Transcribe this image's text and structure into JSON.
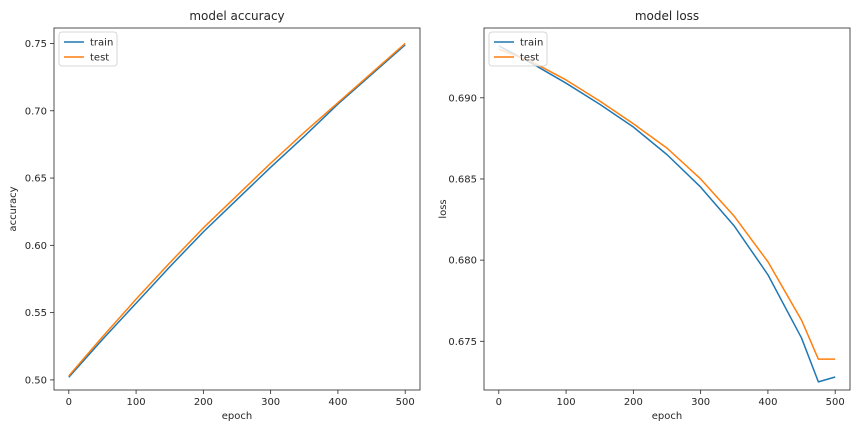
{
  "chart_data": [
    {
      "type": "line",
      "title": "model accuracy",
      "xlabel": "epoch",
      "ylabel": "accuracy",
      "xlim": [
        -22,
        522
      ],
      "ylim": [
        0.4925,
        0.7615
      ],
      "xticks": [
        0,
        100,
        200,
        300,
        400,
        500
      ],
      "yticks": [
        0.5,
        0.55,
        0.6,
        0.65,
        0.7,
        0.75
      ],
      "ytick_labels": [
        "0.50",
        "0.55",
        "0.60",
        "0.65",
        "0.70",
        "0.75"
      ],
      "grid": false,
      "legend": "upper left",
      "series": [
        {
          "name": "train",
          "color": "#1f77b4",
          "x": [
            0,
            50,
            100,
            150,
            200,
            250,
            300,
            350,
            400,
            450,
            500
          ],
          "y": [
            0.502,
            0.53,
            0.557,
            0.584,
            0.61,
            0.634,
            0.658,
            0.681,
            0.705,
            0.727,
            0.749
          ]
        },
        {
          "name": "test",
          "color": "#ff7f0e",
          "x": [
            0,
            50,
            100,
            150,
            200,
            250,
            300,
            350,
            400,
            450,
            500
          ],
          "y": [
            0.503,
            0.532,
            0.56,
            0.587,
            0.613,
            0.637,
            0.661,
            0.684,
            0.706,
            0.728,
            0.75
          ]
        }
      ]
    },
    {
      "type": "line",
      "title": "model loss",
      "xlabel": "epoch",
      "ylabel": "loss",
      "xlim": [
        -22,
        522
      ],
      "ylim": [
        0.672,
        0.6943
      ],
      "xticks": [
        0,
        100,
        200,
        300,
        400,
        500
      ],
      "yticks": [
        0.675,
        0.68,
        0.685,
        0.69
      ],
      "ytick_labels": [
        "0.675",
        "0.680",
        "0.685",
        "0.690"
      ],
      "grid": false,
      "legend": "upper left",
      "series": [
        {
          "name": "train",
          "color": "#1f77b4",
          "x": [
            0,
            50,
            100,
            150,
            200,
            250,
            300,
            350,
            400,
            450,
            475,
            500
          ],
          "y": [
            0.6932,
            0.6921,
            0.6909,
            0.6896,
            0.6882,
            0.6865,
            0.6845,
            0.6821,
            0.6791,
            0.6752,
            0.6725,
            0.6728
          ]
        },
        {
          "name": "test",
          "color": "#ff7f0e",
          "x": [
            0,
            50,
            100,
            150,
            200,
            250,
            300,
            350,
            400,
            450,
            475,
            500
          ],
          "y": [
            0.693,
            0.6922,
            0.6911,
            0.6898,
            0.6884,
            0.6869,
            0.685,
            0.6827,
            0.6799,
            0.6763,
            0.6739,
            0.6739
          ]
        }
      ]
    }
  ]
}
